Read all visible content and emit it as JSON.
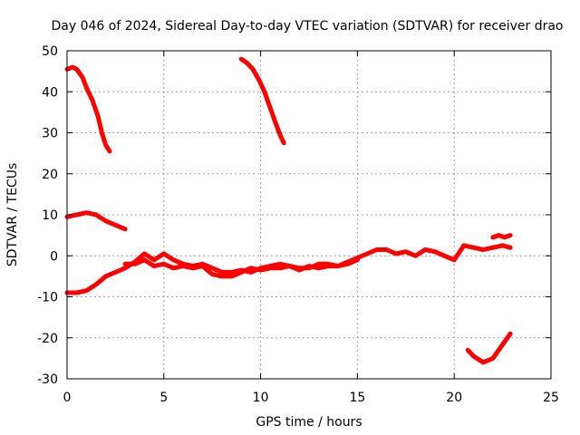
{
  "chart_data": {
    "type": "line",
    "title": "Day 046 of 2024, Sidereal Day-to-day VTEC variation (SDTVAR) for receiver drao",
    "xlabel": "GPS time / hours",
    "ylabel": "SDTVAR / TECUs",
    "xlim": [
      0,
      25
    ],
    "ylim": [
      -30,
      50
    ],
    "xticks": [
      "0",
      "5",
      "10",
      "15",
      "20",
      "25"
    ],
    "yticks": [
      "-30",
      "-20",
      "-10",
      "0",
      "10",
      "20",
      "30",
      "40",
      "50"
    ],
    "grid": true,
    "color": "#ff0000",
    "series": [
      {
        "name": "trace-1",
        "x": [
          0.0,
          0.3,
          0.5,
          0.8,
          1.0,
          1.3,
          1.6,
          1.8,
          2.0,
          2.2
        ],
        "y": [
          45.5,
          46.0,
          45.5,
          43.5,
          41.0,
          38.0,
          34.0,
          30.0,
          27.0,
          25.5
        ]
      },
      {
        "name": "trace-2",
        "x": [
          9.0,
          9.3,
          9.6,
          9.9,
          10.2,
          10.5,
          10.8,
          11.0,
          11.2
        ],
        "y": [
          48.0,
          47.0,
          45.5,
          43.0,
          40.0,
          36.0,
          32.0,
          29.5,
          27.5
        ]
      },
      {
        "name": "trace-3",
        "x": [
          0.0,
          0.5,
          1.0,
          1.5,
          2.0,
          2.5,
          3.0
        ],
        "y": [
          9.5,
          10.0,
          10.5,
          10.0,
          8.5,
          7.5,
          6.5
        ]
      },
      {
        "name": "trace-4",
        "x": [
          0.0,
          0.5,
          1.0,
          1.5,
          2.0,
          2.5,
          3.0,
          3.5,
          4.0,
          4.5,
          5.0,
          5.5,
          6.0,
          6.5,
          7.0,
          7.5,
          8.0,
          8.5,
          9.0,
          9.5,
          10.0,
          10.5,
          11.0,
          11.5,
          12.0,
          12.5,
          13.0,
          13.5,
          14.0,
          14.5,
          15.0,
          15.5,
          16.0,
          16.5,
          17.0,
          17.5,
          18.0,
          18.5,
          19.0,
          19.5,
          20.0,
          20.5,
          21.0,
          21.5,
          22.0,
          22.5,
          22.9
        ],
        "y": [
          -9.0,
          -9.0,
          -8.5,
          -7.0,
          -5.0,
          -4.0,
          -3.0,
          -1.5,
          0.5,
          -1.0,
          0.5,
          -1.0,
          -2.0,
          -2.5,
          -2.0,
          -3.0,
          -4.0,
          -4.0,
          -3.5,
          -4.0,
          -3.0,
          -2.5,
          -2.0,
          -2.5,
          -3.0,
          -3.0,
          -2.0,
          -2.0,
          -2.5,
          -1.5,
          -0.5,
          0.5,
          1.5,
          1.5,
          0.5,
          1.0,
          0.0,
          1.5,
          1.0,
          0.0,
          -1.0,
          2.5,
          2.0,
          1.5,
          2.0,
          2.5,
          2.0
        ]
      },
      {
        "name": "trace-5",
        "x": [
          3.0,
          3.5,
          4.0,
          4.5,
          5.0,
          5.5,
          6.0,
          6.5,
          7.0,
          7.5,
          8.0,
          8.5,
          9.0,
          9.5,
          10.0,
          10.5,
          11.0,
          11.5,
          12.0,
          12.5,
          13.0,
          13.5,
          14.0,
          14.5,
          15.0
        ],
        "y": [
          -2.0,
          -2.0,
          -1.0,
          -2.5,
          -2.0,
          -3.0,
          -2.5,
          -3.0,
          -2.5,
          -4.5,
          -5.0,
          -5.0,
          -4.0,
          -3.0,
          -3.5,
          -3.0,
          -3.0,
          -2.5,
          -3.5,
          -2.5,
          -3.0,
          -2.5,
          -2.5,
          -2.0,
          -1.0
        ]
      },
      {
        "name": "trace-6",
        "x": [
          22.0,
          22.3,
          22.6,
          22.9
        ],
        "y": [
          4.5,
          5.0,
          4.5,
          5.0
        ]
      },
      {
        "name": "trace-7",
        "x": [
          20.7,
          21.0,
          21.5,
          22.0,
          22.3,
          22.6,
          22.9
        ],
        "y": [
          -23.0,
          -24.5,
          -26.0,
          -25.0,
          -23.0,
          -21.0,
          -19.0
        ]
      }
    ]
  }
}
